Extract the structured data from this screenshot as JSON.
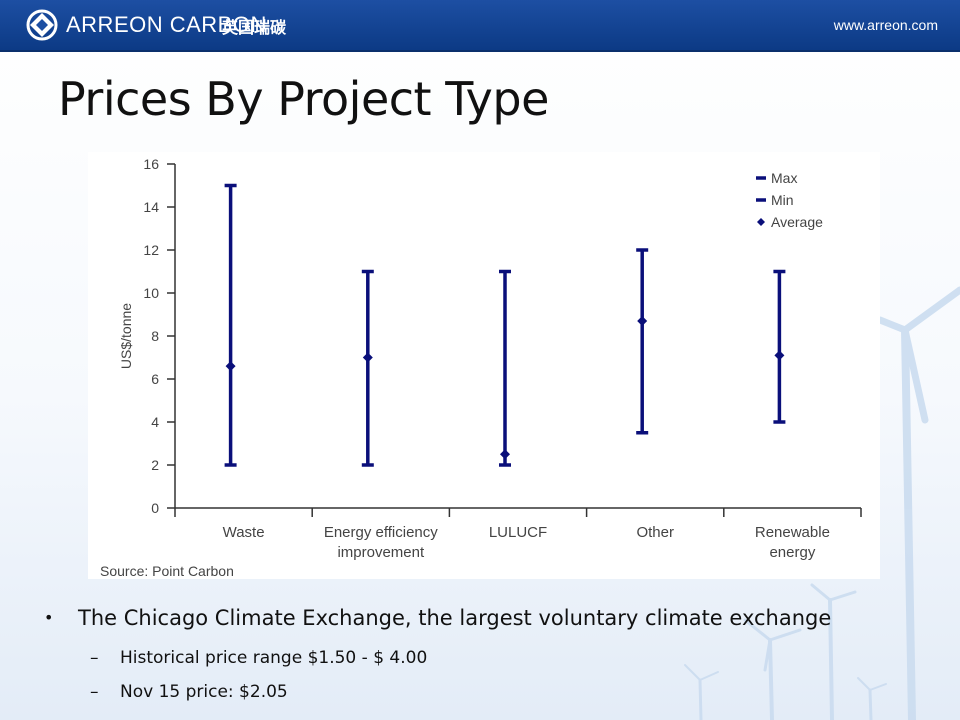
{
  "header": {
    "brand": "ARREON CARBON",
    "brand_cn": "英国瑞碳",
    "website": "www.arreon.com"
  },
  "slide": {
    "title": "Prices By Project Type"
  },
  "chart_data": {
    "type": "range",
    "categories": [
      "Waste",
      "Energy efficiency improvement",
      "LULUCF",
      "Other",
      "Renewable energy"
    ],
    "category_lines": [
      [
        "Waste"
      ],
      [
        "Energy efficiency",
        "improvement"
      ],
      [
        "LULUCF"
      ],
      [
        "Other"
      ],
      [
        "Renewable",
        "energy"
      ]
    ],
    "series": [
      {
        "name": "Max",
        "values": [
          15,
          11,
          11,
          12,
          11
        ]
      },
      {
        "name": "Min",
        "values": [
          2,
          2,
          2,
          3.5,
          4
        ]
      },
      {
        "name": "Average",
        "values": [
          6.6,
          7,
          2.5,
          8.7,
          7.1
        ]
      }
    ],
    "ylabel": "US$/tonne",
    "ylim": [
      0,
      16
    ],
    "yticks": [
      0,
      2,
      4,
      6,
      8,
      10,
      12,
      14,
      16
    ],
    "legend_position": "top-right",
    "source": "Source: Point Carbon",
    "color": "#0a0f7a"
  },
  "bullets": {
    "main": "The Chicago Climate Exchange, the largest voluntary climate exchange",
    "sub": [
      "Historical price range $1.50 - $ 4.00",
      "Nov 15 price: $2.05"
    ]
  }
}
